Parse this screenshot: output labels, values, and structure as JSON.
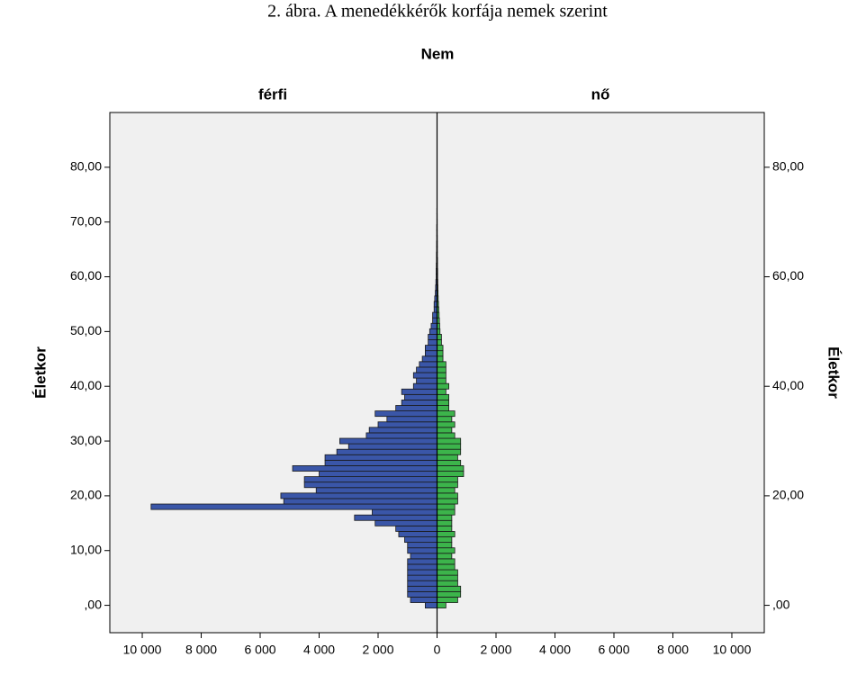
{
  "chart_data": {
    "type": "pyramid",
    "title": "2. ábra. A menedékkérők korfája nemek szerint",
    "legend_title": "Nem",
    "ylabel": "Életkor",
    "x": [
      0,
      1,
      2,
      3,
      4,
      5,
      6,
      7,
      8,
      9,
      10,
      11,
      12,
      13,
      14,
      15,
      16,
      17,
      18,
      19,
      20,
      21,
      22,
      23,
      24,
      25,
      26,
      27,
      28,
      29,
      30,
      31,
      32,
      33,
      34,
      35,
      36,
      37,
      38,
      39,
      40,
      41,
      42,
      43,
      44,
      45,
      46,
      47,
      48,
      49,
      50,
      51,
      52,
      53,
      54,
      55,
      56,
      57,
      58,
      59,
      60,
      61,
      62,
      63,
      64,
      65,
      66,
      67,
      68,
      69,
      70,
      71,
      72
    ],
    "series": [
      {
        "name": "férfi",
        "color": "#3a56a8",
        "values": [
          400,
          900,
          1000,
          1000,
          1000,
          1000,
          1000,
          1000,
          1000,
          900,
          1000,
          1000,
          1100,
          1300,
          1400,
          2100,
          2800,
          2200,
          9700,
          5200,
          5300,
          4100,
          4500,
          4500,
          4000,
          4900,
          3800,
          3800,
          3400,
          3000,
          3300,
          2400,
          2300,
          2000,
          1700,
          2100,
          1400,
          1200,
          1100,
          1200,
          800,
          700,
          800,
          700,
          600,
          500,
          400,
          400,
          300,
          300,
          250,
          200,
          150,
          150,
          100,
          100,
          80,
          60,
          50,
          40,
          30,
          30,
          25,
          20,
          20,
          15,
          15,
          10,
          10,
          10,
          5,
          5,
          5
        ]
      },
      {
        "name": "nő",
        "color": "#3cb44b",
        "values": [
          300,
          700,
          800,
          800,
          700,
          700,
          700,
          600,
          600,
          500,
          600,
          500,
          500,
          600,
          500,
          500,
          500,
          600,
          600,
          700,
          700,
          600,
          700,
          700,
          900,
          900,
          800,
          700,
          800,
          800,
          800,
          600,
          500,
          600,
          500,
          600,
          400,
          400,
          400,
          300,
          400,
          300,
          300,
          300,
          300,
          200,
          200,
          200,
          150,
          150,
          100,
          90,
          80,
          70,
          60,
          50,
          40,
          35,
          30,
          25,
          20,
          20,
          15,
          15,
          10,
          10,
          10,
          8,
          6,
          5,
          5,
          4,
          3
        ]
      }
    ],
    "xlim": [
      -11100,
      11100
    ],
    "xticks": [
      {
        "value": -10000,
        "label": "10 000"
      },
      {
        "value": -8000,
        "label": "8 000"
      },
      {
        "value": -6000,
        "label": "6 000"
      },
      {
        "value": -4000,
        "label": "4 000"
      },
      {
        "value": -2000,
        "label": "2 000"
      },
      0,
      {
        "value": 2000,
        "label": "2 000"
      },
      {
        "value": 4000,
        "label": "4 000"
      },
      {
        "value": 6000,
        "label": "6 000"
      },
      {
        "value": 8000,
        "label": "8 000"
      },
      {
        "value": 10000,
        "label": "10 000"
      }
    ],
    "ylim": [
      -5,
      90
    ],
    "yticks": [
      {
        "value": 0,
        "label": ",00"
      },
      {
        "value": 10,
        "label": "10,00"
      },
      {
        "value": 20,
        "label": "20,00"
      },
      {
        "value": 30,
        "label": "30,00"
      },
      {
        "value": 40,
        "label": "40,00"
      },
      {
        "value": 50,
        "label": "50,00"
      },
      {
        "value": 60,
        "label": "60,00"
      },
      {
        "value": 70,
        "label": "70,00"
      },
      {
        "value": 80,
        "label": "80,00"
      }
    ],
    "y2ticks": [
      {
        "value": 0,
        "label": ",00"
      },
      {
        "value": 20,
        "label": "20,00"
      },
      {
        "value": 40,
        "label": "40,00"
      },
      {
        "value": 60,
        "label": "60,00"
      },
      {
        "value": 80,
        "label": "80,00"
      }
    ]
  }
}
